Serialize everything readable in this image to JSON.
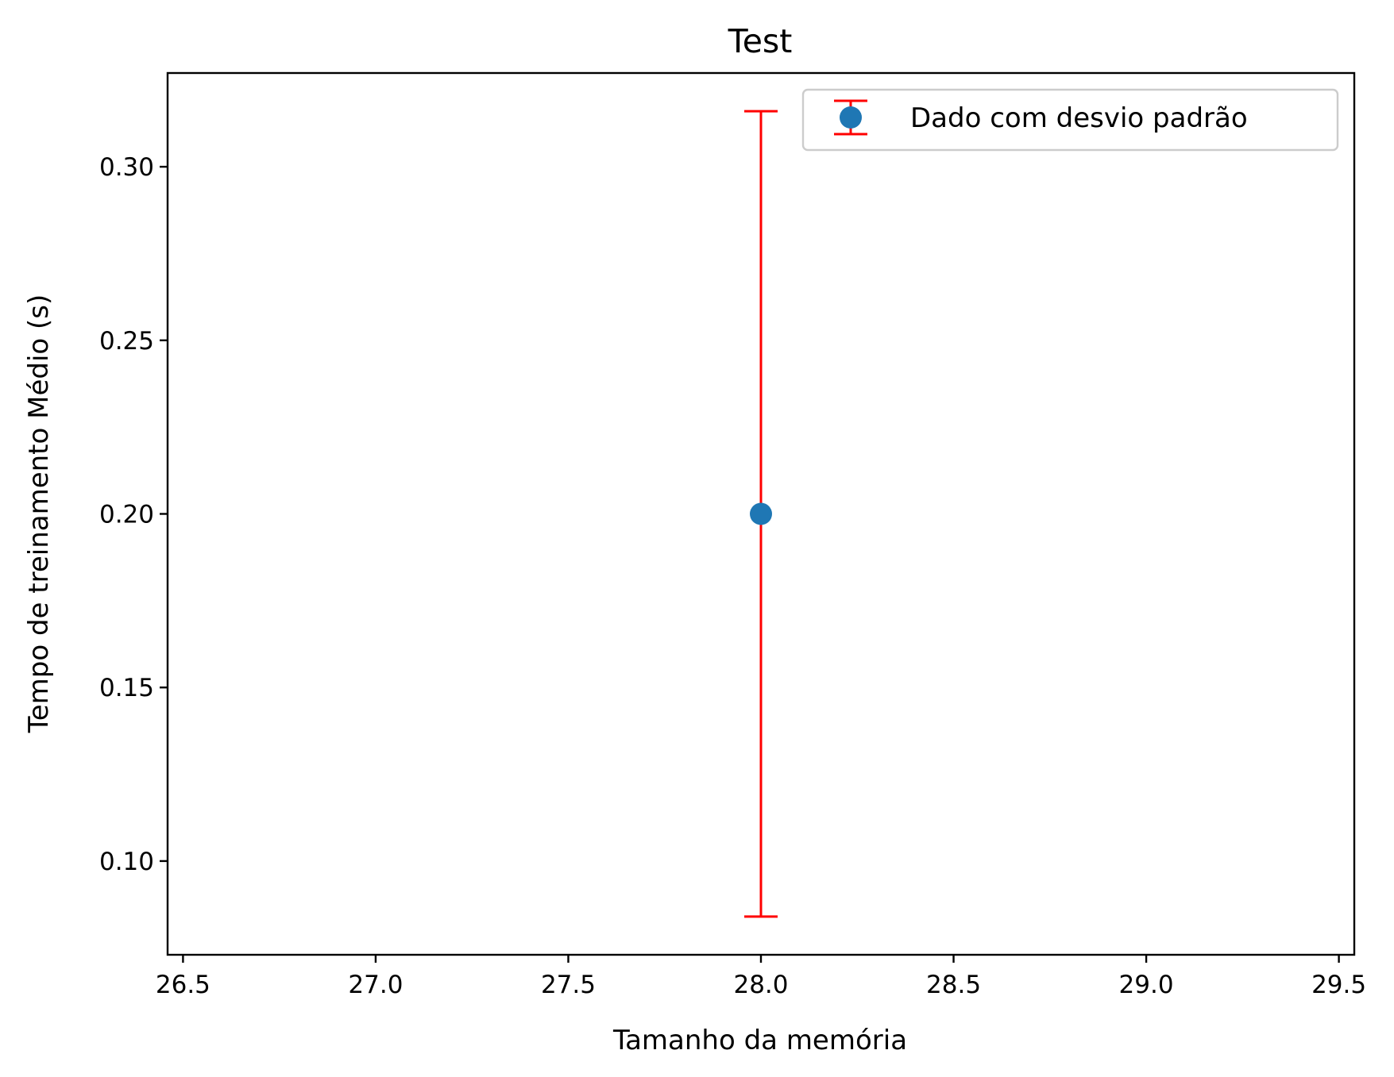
{
  "chart_data": {
    "type": "scatter",
    "title": "Test",
    "xlabel": "Tamanho da memória",
    "ylabel": "Tempo de treinamento Médio (s)",
    "xlim": [
      26.46,
      29.54
    ],
    "ylim": [
      0.073,
      0.327
    ],
    "x_ticks": [
      "26.5",
      "27.0",
      "27.5",
      "28.0",
      "28.5",
      "29.0",
      "29.5"
    ],
    "y_ticks": [
      "0.10",
      "0.15",
      "0.20",
      "0.25",
      "0.30"
    ],
    "grid": false,
    "legend_position": "upper right",
    "series": [
      {
        "name": "Dado com desvio padrão",
        "marker_color": "#1f77b4",
        "errorbar_color": "#ff0000",
        "points": [
          {
            "x": 28,
            "y": 0.2,
            "yerr": 0.116
          }
        ]
      }
    ]
  }
}
